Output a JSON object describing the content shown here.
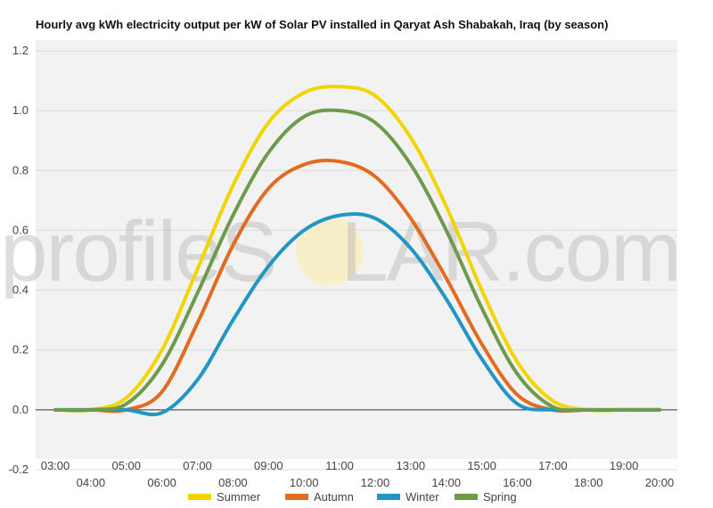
{
  "chart_data": {
    "type": "line",
    "title": "Hourly avg kWh electricity output per kW of Solar PV installed in Qaryat Ash Shabakah, Iraq (by season)",
    "xlabel": "",
    "ylabel": "",
    "x": [
      "03:00",
      "04:00",
      "05:00",
      "06:00",
      "07:00",
      "08:00",
      "09:00",
      "10:00",
      "11:00",
      "12:00",
      "13:00",
      "14:00",
      "15:00",
      "16:00",
      "17:00",
      "18:00",
      "19:00",
      "20:00"
    ],
    "yticks": [
      -0.2,
      0.0,
      0.2,
      0.4,
      0.6,
      0.8,
      1.0,
      1.2
    ],
    "ylim": [
      -0.2,
      1.2
    ],
    "grid": true,
    "legend": "bottom",
    "series": [
      {
        "name": "Summer",
        "color": "#f2d500",
        "values": [
          0.0,
          0.0,
          0.04,
          0.2,
          0.47,
          0.75,
          0.96,
          1.06,
          1.08,
          1.05,
          0.91,
          0.68,
          0.4,
          0.16,
          0.03,
          0.0,
          0.0,
          0.0
        ]
      },
      {
        "name": "Autumn",
        "color": "#e26b1f",
        "values": [
          0.0,
          0.0,
          0.0,
          0.06,
          0.29,
          0.55,
          0.74,
          0.82,
          0.83,
          0.78,
          0.64,
          0.44,
          0.22,
          0.05,
          0.0,
          0.0,
          0.0,
          0.0
        ]
      },
      {
        "name": "Winter",
        "color": "#2196c4",
        "values": [
          0.0,
          0.0,
          0.0,
          -0.01,
          0.1,
          0.3,
          0.48,
          0.6,
          0.65,
          0.64,
          0.54,
          0.37,
          0.17,
          0.02,
          0.0,
          0.0,
          0.0,
          0.0
        ]
      },
      {
        "name": "Spring",
        "color": "#6e9a4b",
        "values": [
          0.0,
          0.0,
          0.02,
          0.15,
          0.39,
          0.65,
          0.86,
          0.98,
          1.0,
          0.96,
          0.82,
          0.6,
          0.34,
          0.12,
          0.01,
          0.0,
          0.0,
          0.0
        ]
      }
    ]
  },
  "watermark": {
    "text_left": "profile",
    "text_s": "S",
    "text_o": "O",
    "text_right": "LAR.com"
  }
}
